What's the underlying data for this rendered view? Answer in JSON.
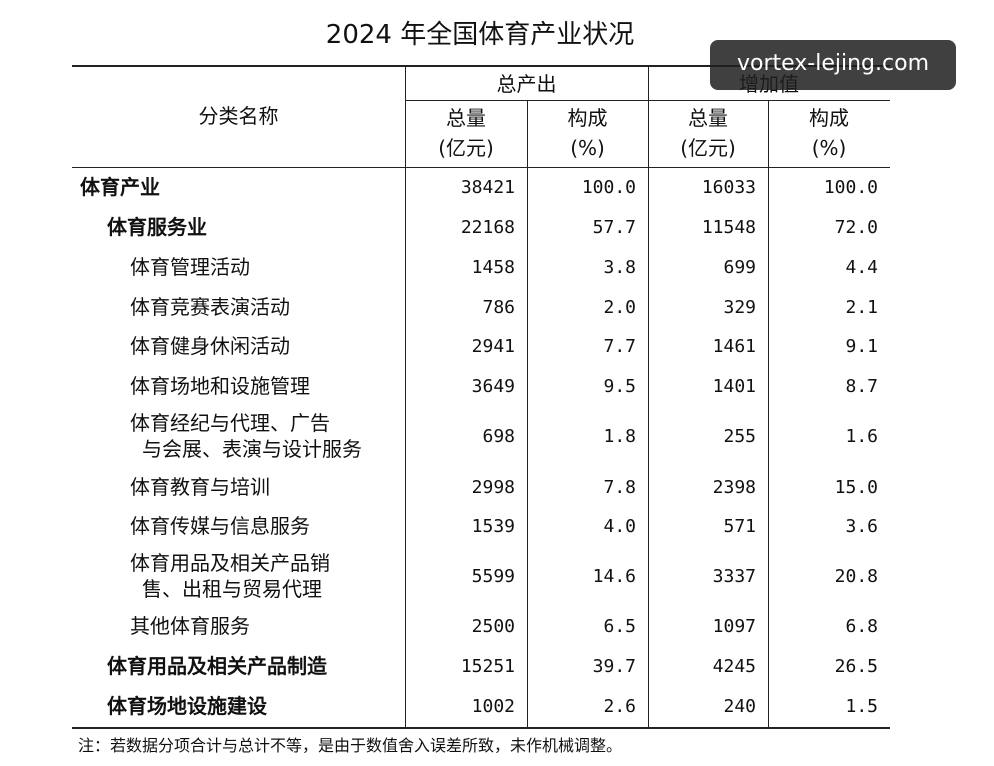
{
  "title": "2024 年全国体育产业状况",
  "watermark": "vortex-lejing.com",
  "header": {
    "category": "分类名称",
    "groups": [
      "总产出",
      "增加值"
    ],
    "columns": [
      [
        "总量",
        "(亿元)"
      ],
      [
        "构成",
        "(%)"
      ],
      [
        "总量",
        "(亿元)"
      ],
      [
        "构成",
        "(%)"
      ]
    ]
  },
  "rows": [
    {
      "level": 0,
      "label": [
        "体育产业"
      ],
      "cells": [
        "38421",
        "100.0",
        "16033",
        "100.0"
      ]
    },
    {
      "level": 1,
      "label": [
        "体育服务业"
      ],
      "cells": [
        "22168",
        "57.7",
        "11548",
        "72.0"
      ]
    },
    {
      "level": 2,
      "label": [
        "体育管理活动"
      ],
      "cells": [
        "1458",
        "3.8",
        "699",
        "4.4"
      ]
    },
    {
      "level": 2,
      "label": [
        "体育竞赛表演活动"
      ],
      "cells": [
        "786",
        "2.0",
        "329",
        "2.1"
      ]
    },
    {
      "level": 2,
      "label": [
        "体育健身休闲活动"
      ],
      "cells": [
        "2941",
        "7.7",
        "1461",
        "9.1"
      ]
    },
    {
      "level": 2,
      "label": [
        "体育场地和设施管理"
      ],
      "cells": [
        "3649",
        "9.5",
        "1401",
        "8.7"
      ]
    },
    {
      "level": 2,
      "label": [
        "体育经纪与代理、广告",
        "与会展、表演与设计服务"
      ],
      "cells": [
        "698",
        "1.8",
        "255",
        "1.6"
      ]
    },
    {
      "level": 2,
      "label": [
        "体育教育与培训"
      ],
      "cells": [
        "2998",
        "7.8",
        "2398",
        "15.0"
      ]
    },
    {
      "level": 2,
      "label": [
        "体育传媒与信息服务"
      ],
      "cells": [
        "1539",
        "4.0",
        "571",
        "3.6"
      ]
    },
    {
      "level": 2,
      "label": [
        "体育用品及相关产品销",
        "售、出租与贸易代理"
      ],
      "cells": [
        "5599",
        "14.6",
        "3337",
        "20.8"
      ]
    },
    {
      "level": 2,
      "label": [
        "其他体育服务"
      ],
      "cells": [
        "2500",
        "6.5",
        "1097",
        "6.8"
      ]
    },
    {
      "level": 1,
      "label": [
        "体育用品及相关产品制造"
      ],
      "cells": [
        "15251",
        "39.7",
        "4245",
        "26.5"
      ]
    },
    {
      "level": 1,
      "label": [
        "体育场地设施建设"
      ],
      "cells": [
        "1002",
        "2.6",
        "240",
        "1.5"
      ]
    }
  ],
  "note": "注：若数据分项合计与总计不等，是由于数值舍入误差所致，未作机械调整。"
}
